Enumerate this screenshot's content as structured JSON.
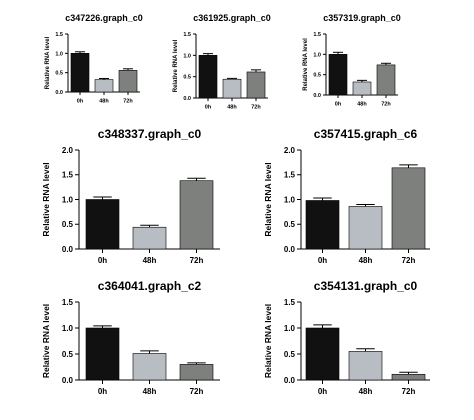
{
  "chart_data": [
    {
      "type": "bar",
      "title": "c347226.graph_c0",
      "ylabel": "Relative RNA level",
      "categories": [
        "0h",
        "48h",
        "72h"
      ],
      "values": [
        1.0,
        0.32,
        0.56
      ],
      "errors": [
        0.04,
        0.03,
        0.04
      ],
      "ylim": [
        0,
        1.5
      ],
      "yticks": [
        "0.0",
        "0.5",
        "1.0",
        "1.5"
      ],
      "bar_colors": [
        "#111111",
        "#b8bcc3",
        "#7e807d"
      ],
      "grid": false,
      "legend": "none"
    },
    {
      "type": "bar",
      "title": "c361925.graph_c0",
      "ylabel": "Relative RNA level",
      "categories": [
        "0h",
        "48h",
        "72h"
      ],
      "values": [
        1.0,
        0.44,
        0.61
      ],
      "errors": [
        0.04,
        0.02,
        0.05
      ],
      "ylim": [
        0,
        1.5
      ],
      "yticks": [
        "0.0",
        "0.5",
        "1.0",
        "1.5"
      ],
      "bar_colors": [
        "#111111",
        "#b8bcc3",
        "#7e807d"
      ],
      "grid": false,
      "legend": "none"
    },
    {
      "type": "bar",
      "title": "c357319.graph_c0",
      "ylabel": "Relative RNA level",
      "categories": [
        "0h",
        "48h",
        "72h"
      ],
      "values": [
        1.0,
        0.32,
        0.74
      ],
      "errors": [
        0.05,
        0.04,
        0.04
      ],
      "ylim": [
        0,
        1.5
      ],
      "yticks": [
        "0.0",
        "0.5",
        "1.0",
        "1.5"
      ],
      "bar_colors": [
        "#111111",
        "#b8bcc3",
        "#7e807d"
      ],
      "grid": false,
      "legend": "none"
    },
    {
      "type": "bar",
      "title": "c348337.graph_c0",
      "ylabel": "Relative RNA level",
      "categories": [
        "0h",
        "48h",
        "72h"
      ],
      "values": [
        1.0,
        0.44,
        1.38
      ],
      "errors": [
        0.05,
        0.04,
        0.05
      ],
      "ylim": [
        0,
        2.0
      ],
      "yticks": [
        "0.0",
        "0.5",
        "1.0",
        "1.5",
        "2.0"
      ],
      "bar_colors": [
        "#111111",
        "#b8bcc3",
        "#7e807d"
      ],
      "grid": false,
      "legend": "none"
    },
    {
      "type": "bar",
      "title": "c357415.graph_c6",
      "ylabel": "Relative RNA level",
      "categories": [
        "0h",
        "48h",
        "72h"
      ],
      "values": [
        0.98,
        0.86,
        1.64
      ],
      "errors": [
        0.05,
        0.04,
        0.06
      ],
      "ylim": [
        0,
        2.0
      ],
      "yticks": [
        "0.0",
        "0.5",
        "1.0",
        "1.5",
        "2.0"
      ],
      "bar_colors": [
        "#111111",
        "#b8bcc3",
        "#7e807d"
      ],
      "grid": false,
      "legend": "none"
    },
    {
      "type": "bar",
      "title": "c364041.graph_c2",
      "ylabel": "Relative RNA level",
      "categories": [
        "0h",
        "48h",
        "72h"
      ],
      "values": [
        1.0,
        0.51,
        0.3
      ],
      "errors": [
        0.04,
        0.05,
        0.03
      ],
      "ylim": [
        0,
        1.5
      ],
      "yticks": [
        "0.0",
        "0.5",
        "1.0",
        "1.5"
      ],
      "bar_colors": [
        "#111111",
        "#b8bcc3",
        "#7e807d"
      ],
      "grid": false,
      "legend": "none"
    },
    {
      "type": "bar",
      "title": "c354131.graph_c0",
      "ylabel": "Relative RNA level",
      "categories": [
        "0h",
        "48h",
        "72h"
      ],
      "values": [
        1.0,
        0.55,
        0.11
      ],
      "errors": [
        0.06,
        0.05,
        0.04
      ],
      "ylim": [
        0,
        1.5
      ],
      "yticks": [
        "0.0",
        "0.5",
        "1.0",
        "1.5"
      ],
      "bar_colors": [
        "#111111",
        "#b8bcc3",
        "#7e807d"
      ],
      "grid": false,
      "legend": "none"
    }
  ]
}
